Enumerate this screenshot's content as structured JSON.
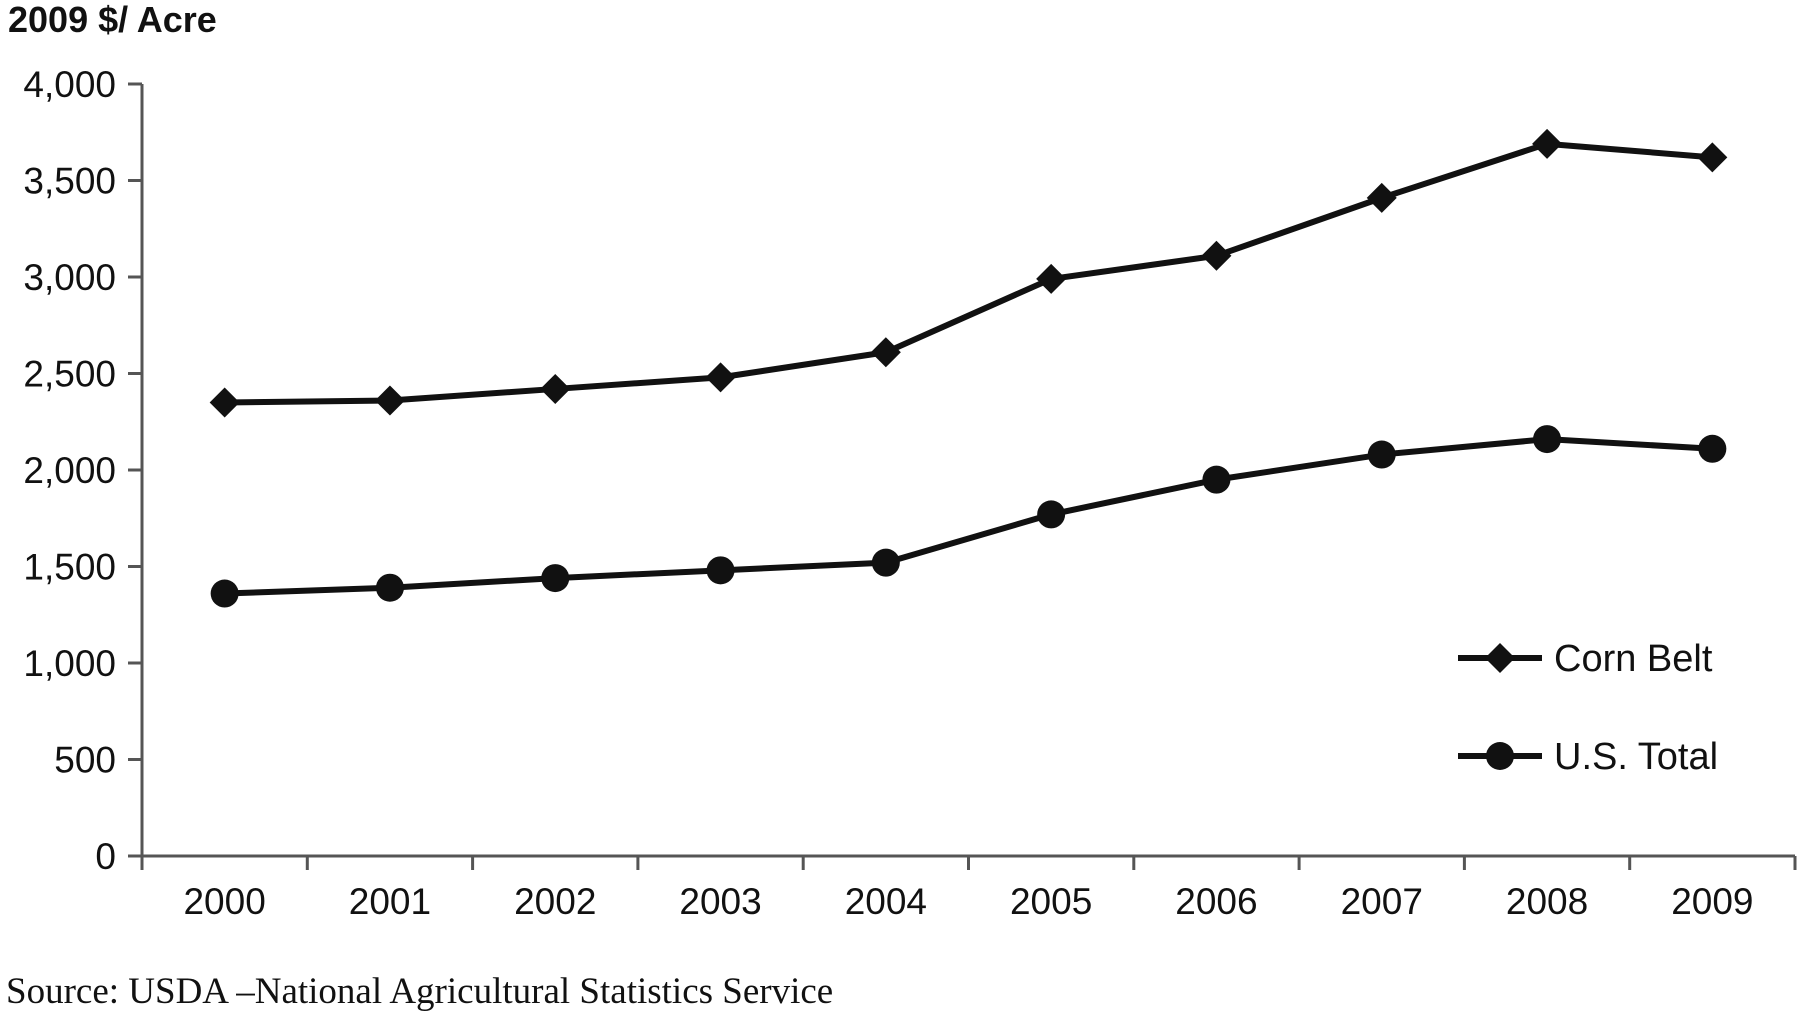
{
  "chart_data": {
    "type": "line",
    "ylabel": "2009 $/ Acre",
    "source": "Source: USDA –National Agricultural Statistics Service",
    "categories": [
      "2000",
      "2001",
      "2002",
      "2003",
      "2004",
      "2005",
      "2006",
      "2007",
      "2008",
      "2009"
    ],
    "ylim": [
      0,
      4000
    ],
    "yticks": [
      0,
      500,
      1000,
      1500,
      2000,
      2500,
      3000,
      3500,
      4000
    ],
    "ytick_labels": [
      "0",
      "500",
      "1,000",
      "1,500",
      "2,000",
      "2,500",
      "3,000",
      "3,500",
      "4,000"
    ],
    "grid": false,
    "legend_position": "bottom-right",
    "series": [
      {
        "name": "Corn Belt",
        "marker": "diamond",
        "color": "#111111",
        "values": [
          2350,
          2360,
          2420,
          2480,
          2610,
          2990,
          3110,
          3410,
          3690,
          3620
        ]
      },
      {
        "name": "U.S. Total",
        "marker": "circle",
        "color": "#111111",
        "values": [
          1360,
          1390,
          1440,
          1480,
          1520,
          1770,
          1950,
          2080,
          2160,
          2110
        ]
      }
    ]
  }
}
